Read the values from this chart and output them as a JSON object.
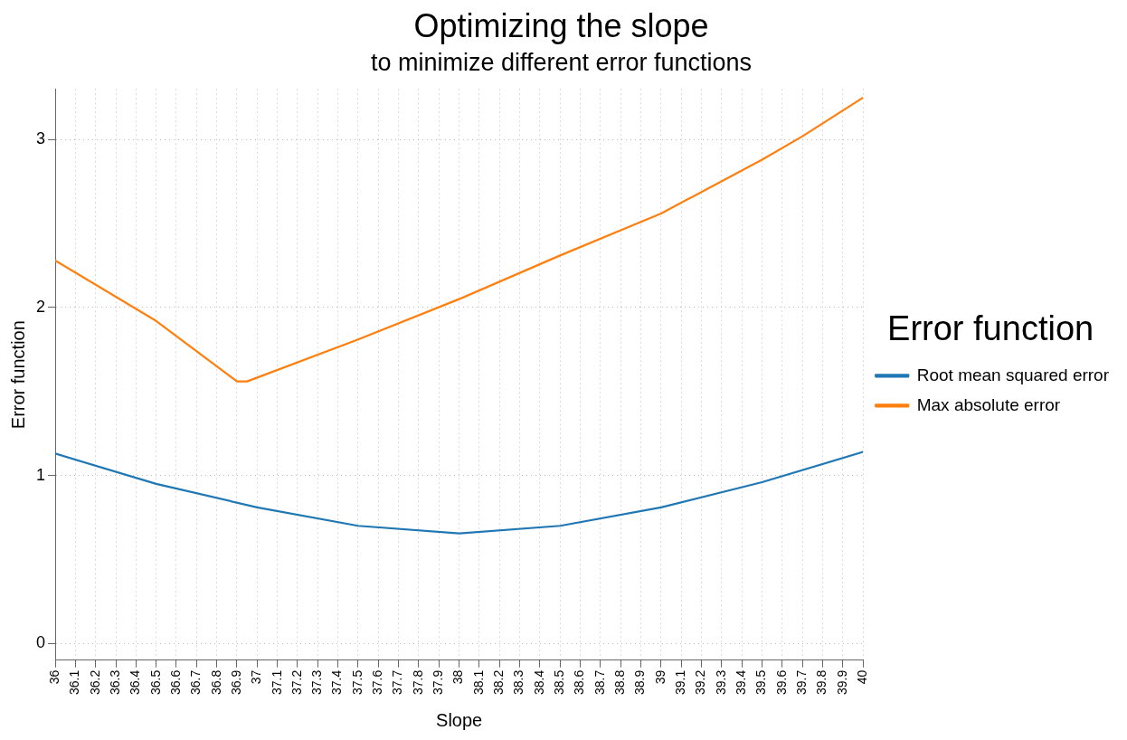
{
  "chart_data": {
    "type": "line",
    "title": "Optimizing the slope",
    "subtitle": "to minimize different error functions",
    "xlabel": "Slope",
    "ylabel": "Error function",
    "legend_title": "Error function",
    "x": [
      36,
      36.5,
      36.9,
      36.95,
      37.5,
      38,
      38.5,
      39,
      39.5,
      39.7,
      40
    ],
    "series": [
      {
        "name": "Root mean squared error",
        "color": "#1f77b4",
        "x": [
          36,
          36.5,
          37,
          37.5,
          38,
          38.5,
          39,
          39.5,
          40
        ],
        "values": [
          1.13,
          0.95,
          0.81,
          0.7,
          0.655,
          0.7,
          0.81,
          0.96,
          1.14
        ]
      },
      {
        "name": "Max absolute error",
        "color": "#ff7f0e",
        "values": [
          2.28,
          1.92,
          1.56,
          1.56,
          1.81,
          2.05,
          2.31,
          2.56,
          2.88,
          3.02,
          3.25
        ]
      }
    ],
    "xlim": [
      36,
      40
    ],
    "xticks": [
      36,
      36.1,
      36.2,
      36.3,
      36.4,
      36.5,
      36.6,
      36.7,
      36.8,
      36.9,
      37,
      37.1,
      37.2,
      37.3,
      37.4,
      37.5,
      37.6,
      37.7,
      37.8,
      37.9,
      38,
      38.1,
      38.2,
      38.3,
      38.4,
      38.5,
      38.6,
      38.7,
      38.8,
      38.9,
      39,
      39.1,
      39.2,
      39.3,
      39.4,
      39.5,
      39.6,
      39.7,
      39.8,
      39.9,
      40
    ],
    "ylim": [
      -0.1,
      3.3
    ],
    "yticks": [
      0,
      1,
      2,
      3
    ],
    "grid": true,
    "legend": "right",
    "marker": "none",
    "line_style": "solid"
  }
}
